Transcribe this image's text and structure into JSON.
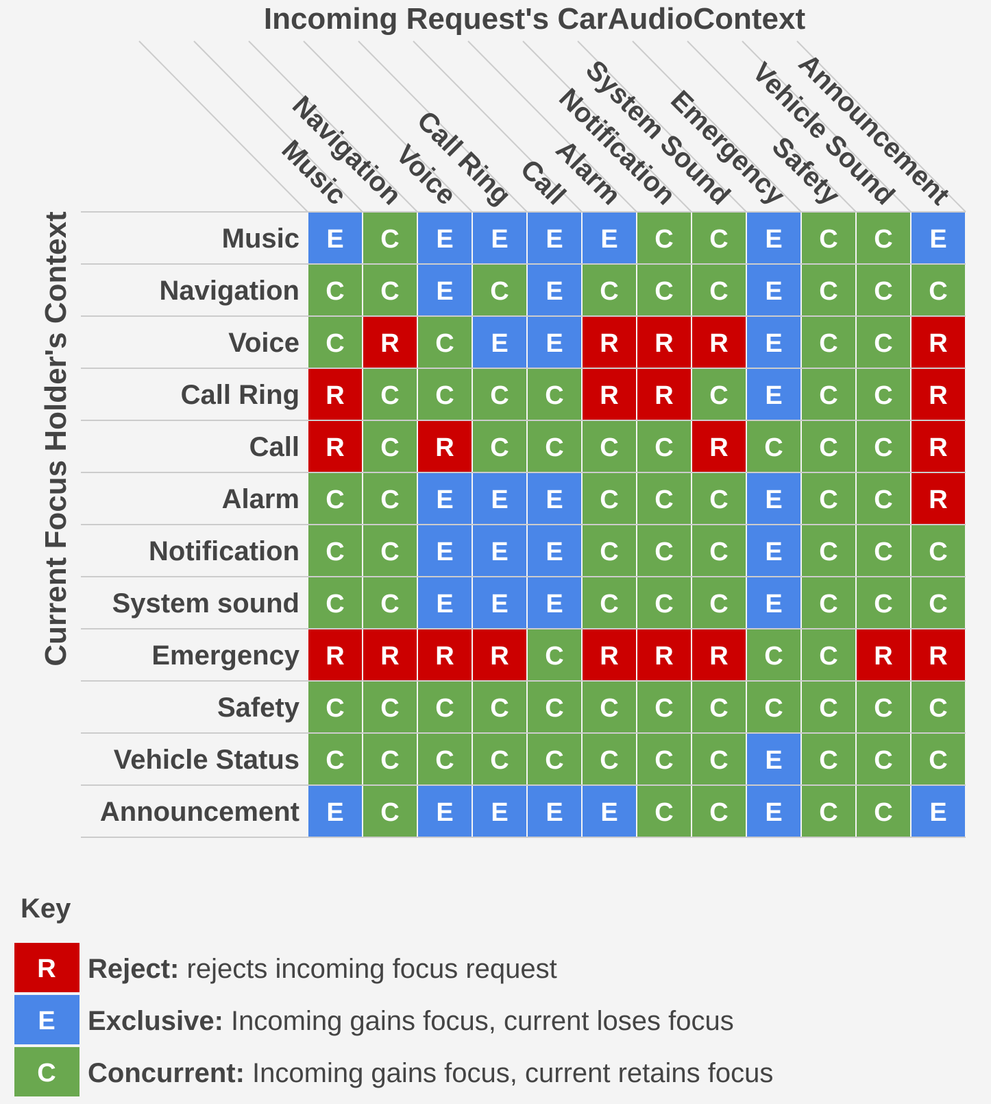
{
  "title": "Incoming Request's CarAudioContext",
  "y_axis_title": "Current Focus Holder's Context",
  "columns": [
    "Music",
    "Navigation",
    "Voice",
    "Call Ring",
    "Call",
    "Alarm",
    "Notification",
    "System Sound",
    "Emergency",
    "Safety",
    "Vehicle Sound",
    "Announcement"
  ],
  "rows": [
    "Music",
    "Navigation",
    "Voice",
    "Call Ring",
    "Call",
    "Alarm",
    "Notification",
    "System sound",
    "Emergency",
    "Safety",
    "Vehicle Status",
    "Announcement"
  ],
  "matrix": [
    [
      "E",
      "C",
      "E",
      "E",
      "E",
      "E",
      "C",
      "C",
      "E",
      "C",
      "C",
      "E"
    ],
    [
      "C",
      "C",
      "E",
      "C",
      "E",
      "C",
      "C",
      "C",
      "E",
      "C",
      "C",
      "C"
    ],
    [
      "C",
      "R",
      "C",
      "E",
      "E",
      "R",
      "R",
      "R",
      "E",
      "C",
      "C",
      "R"
    ],
    [
      "R",
      "C",
      "C",
      "C",
      "C",
      "R",
      "R",
      "C",
      "E",
      "C",
      "C",
      "R"
    ],
    [
      "R",
      "C",
      "R",
      "C",
      "C",
      "C",
      "C",
      "R",
      "C",
      "C",
      "C",
      "R"
    ],
    [
      "C",
      "C",
      "E",
      "E",
      "E",
      "C",
      "C",
      "C",
      "E",
      "C",
      "C",
      "R"
    ],
    [
      "C",
      "C",
      "E",
      "E",
      "E",
      "C",
      "C",
      "C",
      "E",
      "C",
      "C",
      "C"
    ],
    [
      "C",
      "C",
      "E",
      "E",
      "E",
      "C",
      "C",
      "C",
      "E",
      "C",
      "C",
      "C"
    ],
    [
      "R",
      "R",
      "R",
      "R",
      "C",
      "R",
      "R",
      "R",
      "C",
      "C",
      "R",
      "R"
    ],
    [
      "C",
      "C",
      "C",
      "C",
      "C",
      "C",
      "C",
      "C",
      "C",
      "C",
      "C",
      "C"
    ],
    [
      "C",
      "C",
      "C",
      "C",
      "C",
      "C",
      "C",
      "C",
      "E",
      "C",
      "C",
      "C"
    ],
    [
      "E",
      "C",
      "E",
      "E",
      "E",
      "E",
      "C",
      "C",
      "E",
      "C",
      "C",
      "E"
    ]
  ],
  "colors": {
    "R": "#cc0000",
    "E": "#4a86e8",
    "C": "#6aa84f",
    "grid": "#cccccc"
  },
  "key": {
    "title": "Key",
    "items": [
      {
        "letter": "R",
        "name": "Reject:",
        "desc": "rejects incoming focus request"
      },
      {
        "letter": "E",
        "name": "Exclusive:",
        "desc": "Incoming gains focus, current loses focus"
      },
      {
        "letter": "C",
        "name": "Concurrent:",
        "desc": "Incoming gains focus, current retains focus"
      }
    ]
  }
}
